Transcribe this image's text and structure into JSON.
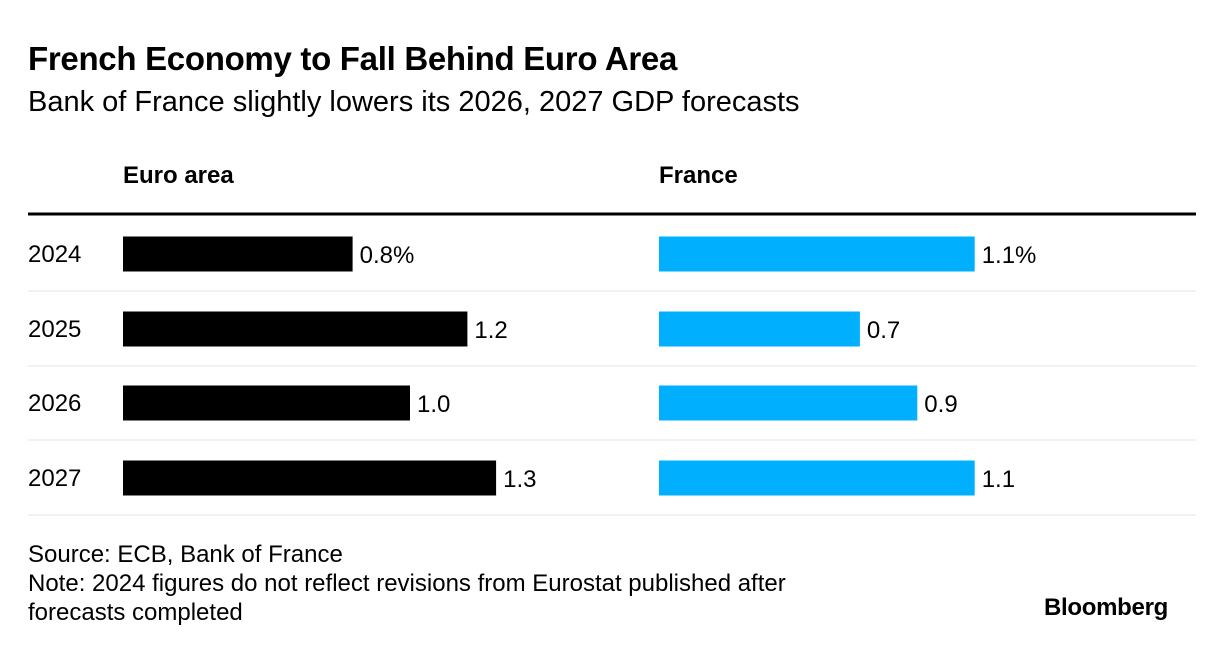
{
  "header": {
    "title": "French Economy to Fall Behind Euro Area",
    "subtitle": "Bank of France slightly lowers its 2026, 2027 GDP forecasts"
  },
  "chart_data": {
    "type": "bar",
    "orientation": "horizontal",
    "categories": [
      "2024",
      "2025",
      "2026",
      "2027"
    ],
    "series": [
      {
        "name": "Euro area",
        "values": [
          0.8,
          1.2,
          1.0,
          1.3
        ],
        "labels": [
          "0.8%",
          "1.2",
          "1.0",
          "1.3"
        ],
        "color": "#000000"
      },
      {
        "name": "France",
        "values": [
          1.1,
          0.7,
          0.9,
          1.1
        ],
        "labels": [
          "1.1%",
          "0.7",
          "0.9",
          "1.1"
        ],
        "color": "#00b0ff"
      }
    ],
    "layout": "small-multiples",
    "grid": "row separators"
  },
  "footer": {
    "source": "Source: ECB, Bank of France",
    "note_line1": "Note: 2024 figures do not reflect revisions from Eurostat published after",
    "note_line2": "forecasts completed",
    "logo": "Bloomberg"
  }
}
